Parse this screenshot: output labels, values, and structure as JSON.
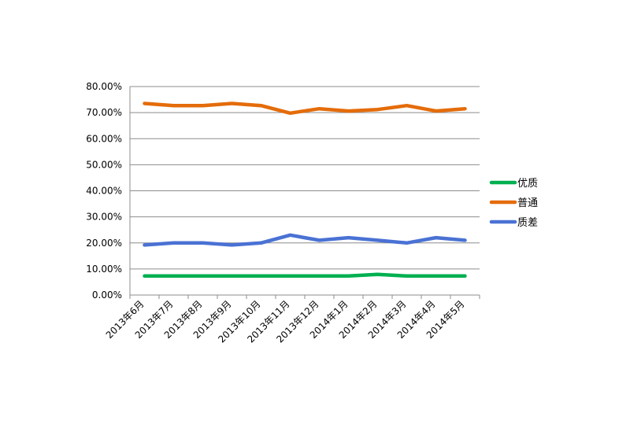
{
  "chart_data": {
    "type": "line",
    "title": "",
    "xlabel": "",
    "ylabel": "",
    "ylim": [
      0,
      0.8
    ],
    "yticks": [
      "0.00%",
      "10.00%",
      "20.00%",
      "30.00%",
      "40.00%",
      "50.00%",
      "60.00%",
      "70.00%",
      "80.00%"
    ],
    "categories": [
      "2013年6月",
      "2013年7月",
      "2013年8月",
      "2013年9月",
      "2013年10月",
      "2013年11月",
      "2013年12月",
      "2014年1月",
      "2014年2月",
      "2014年3月",
      "2014年4月",
      "2014年5月"
    ],
    "grid": true,
    "legend_position": "right",
    "series": [
      {
        "name": "优质",
        "color": "#00b050",
        "values": [
          0.073,
          0.073,
          0.073,
          0.073,
          0.073,
          0.073,
          0.073,
          0.073,
          0.079,
          0.073,
          0.073,
          0.073
        ]
      },
      {
        "name": "普通",
        "color": "#e46c0a",
        "values": [
          0.735,
          0.727,
          0.727,
          0.735,
          0.727,
          0.698,
          0.715,
          0.706,
          0.712,
          0.727,
          0.706,
          0.715
        ]
      },
      {
        "name": "质差",
        "color": "#4a72d4",
        "values": [
          0.192,
          0.2,
          0.2,
          0.192,
          0.2,
          0.23,
          0.21,
          0.22,
          0.21,
          0.2,
          0.22,
          0.21
        ]
      }
    ]
  }
}
